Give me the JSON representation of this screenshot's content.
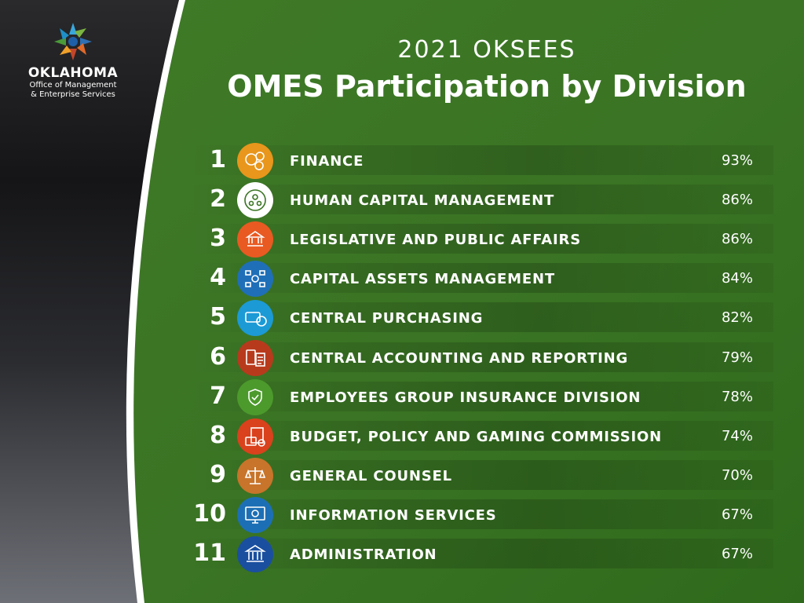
{
  "logo": {
    "name": "OKLAHOMA",
    "subtitle_line1": "Office of Management",
    "subtitle_line2": "& Enterprise Services"
  },
  "colors": {
    "green": "#3b7424",
    "dark": "#1c1c1e"
  },
  "chart_data": {
    "type": "table",
    "title": "OMES Participation by Division",
    "subtitle": "2021 OKSEES",
    "columns": [
      "rank",
      "division",
      "participation"
    ],
    "rows": [
      {
        "rank": "1",
        "division": "FINANCE",
        "value": 93,
        "label": "93%",
        "icon": "gears-dollar-icon",
        "icon_color": "#e8961c"
      },
      {
        "rank": "2",
        "division": "HUMAN CAPITAL MANAGEMENT",
        "value": 86,
        "label": "86%",
        "icon": "people-cycle-icon",
        "icon_color": "#ffffff"
      },
      {
        "rank": "3",
        "division": "LEGISLATIVE AND PUBLIC AFFAIRS",
        "value": 86,
        "label": "86%",
        "icon": "capitol-handshake-icon",
        "icon_color": "#e85a22"
      },
      {
        "rank": "4",
        "division": "CAPITAL ASSETS MANAGEMENT",
        "value": 84,
        "label": "84%",
        "icon": "assets-network-icon",
        "icon_color": "#1f6fb8"
      },
      {
        "rank": "5",
        "division": "CENTRAL PURCHASING",
        "value": 82,
        "label": "82%",
        "icon": "card-dollar-icon",
        "icon_color": "#1c9ad6"
      },
      {
        "rank": "6",
        "division": "CENTRAL ACCOUNTING AND REPORTING",
        "value": 79,
        "label": "79%",
        "icon": "calculator-report-icon",
        "icon_color": "#b83a1c"
      },
      {
        "rank": "7",
        "division": "EMPLOYEES GROUP INSURANCE DIVISION",
        "value": 78,
        "label": "78%",
        "icon": "shield-people-icon",
        "icon_color": "#4c9a2c"
      },
      {
        "rank": "8",
        "division": "BUDGET, POLICY AND GAMING COMMISSION",
        "value": 74,
        "label": "74%",
        "icon": "budget-document-icon",
        "icon_color": "#d9421c"
      },
      {
        "rank": "9",
        "division": "GENERAL COUNSEL",
        "value": 70,
        "label": "70%",
        "icon": "scales-icon",
        "icon_color": "#c8742a"
      },
      {
        "rank": "10",
        "division": "INFORMATION SERVICES",
        "value": 67,
        "label": "67%",
        "icon": "monitor-gear-icon",
        "icon_color": "#1d6fb5"
      },
      {
        "rank": "11",
        "division": "ADMINISTRATION",
        "value": 67,
        "label": "67%",
        "icon": "capitol-building-icon",
        "icon_color": "#1a4fa0"
      }
    ]
  }
}
